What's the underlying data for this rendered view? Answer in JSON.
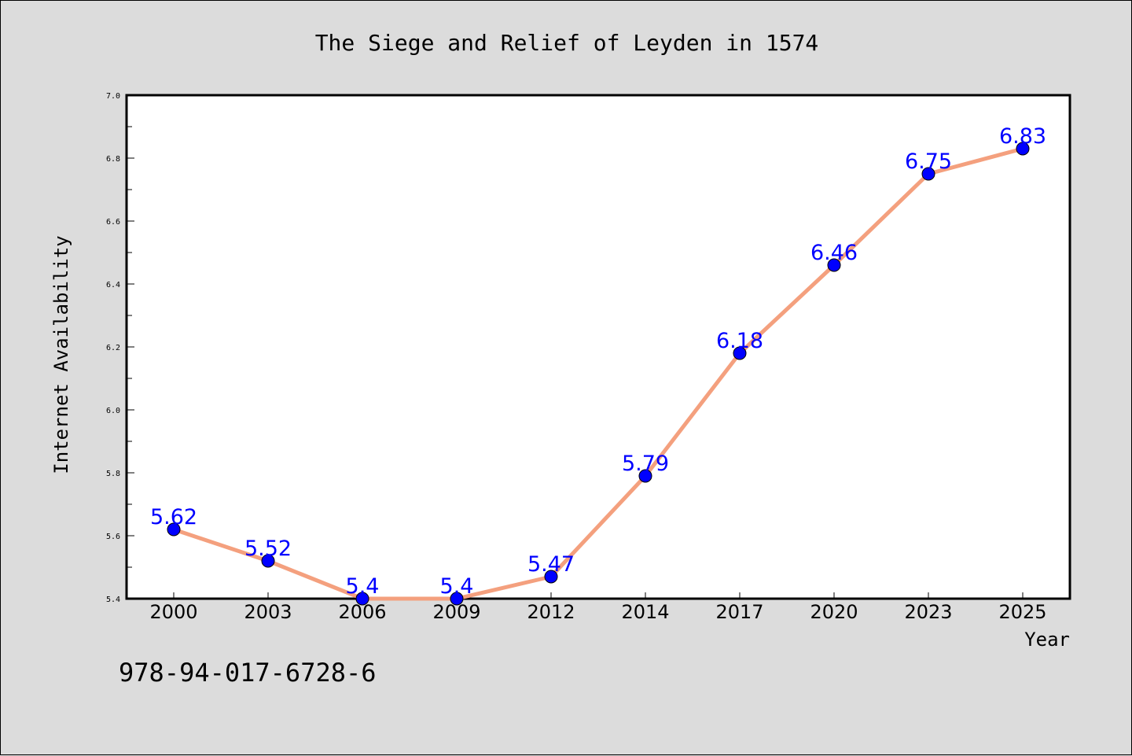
{
  "chart_data": {
    "type": "line",
    "title": "The Siege and Relief of Leyden in 1574",
    "xlabel": "Year",
    "ylabel": "Internet Availability",
    "categories": [
      "2000",
      "2003",
      "2006",
      "2009",
      "2012",
      "2014",
      "2017",
      "2020",
      "2023",
      "2025"
    ],
    "series": [
      {
        "values": [
          5.62,
          5.52,
          5.4,
          5.4,
          5.47,
          5.79,
          6.18,
          6.46,
          6.75,
          6.83
        ],
        "labels": [
          "5.62",
          "5.52",
          "5.4",
          "5.4",
          "5.47",
          "5.79",
          "6.18",
          "6.46",
          "6.75",
          "6.83"
        ]
      }
    ],
    "ylim": [
      5.4,
      7.0
    ],
    "yticks": [
      "5.4",
      "5.6",
      "5.8",
      "6.0",
      "6.2",
      "6.4",
      "6.6",
      "6.8",
      "7.0"
    ],
    "grid": false,
    "legend": "none",
    "colors": {
      "line": "#f4a07e",
      "marker": "#0000ff",
      "data_label": "#0000ff",
      "background": "#dcdcdc",
      "plot_background": "#ffffff"
    },
    "annotation": "978-94-017-6728-6"
  }
}
